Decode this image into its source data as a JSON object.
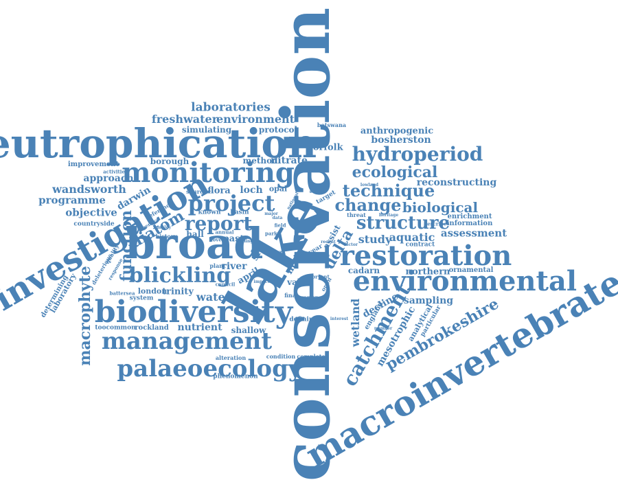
{
  "words": [
    "conservation",
    "lake",
    "macroinvertebrates",
    "eutrophication",
    "investigation",
    "broad",
    "biodiversity",
    "environmental",
    "monitoring",
    "restoration",
    "management",
    "palaeoecology",
    "project",
    "report",
    "blickling",
    "hydroperiod",
    "structure",
    "technique",
    "change",
    "ecological",
    "catchment",
    "pembrokeshire",
    "macrophyte",
    "diatom",
    "function",
    "biological",
    "laboratories",
    "freshwater",
    "environment",
    "simulating",
    "protocol",
    "botswana",
    "anthropogenic",
    "bosherston",
    "norfolk",
    "borough",
    "method",
    "nitrate",
    "improvement",
    "activities",
    "approach",
    "wandsworth",
    "darwin",
    "programme",
    "objective",
    "countryside",
    "flora",
    "loch",
    "opal",
    "source",
    "reconstructing",
    "lowland",
    "season",
    "target",
    "assessment",
    "study",
    "aquatic",
    "information",
    "enrichment",
    "threat",
    "describe",
    "contract",
    "delta",
    "site",
    "main",
    "river",
    "april",
    "past",
    "value",
    "water",
    "london",
    "trinity",
    "system",
    "battersea",
    "hall",
    "nutrient",
    "shallow",
    "council",
    "plant",
    "rockland",
    "toocommon",
    "laboratory",
    "determining",
    "deleterious",
    "quality",
    "response",
    "reference",
    "employ",
    "history",
    "general",
    "known",
    "basin",
    "annual",
    "novel",
    "major",
    "field",
    "data",
    "final",
    "region",
    "bryant",
    "open",
    "interest",
    "cadarn",
    "northern",
    "ornamental",
    "decline",
    "sampling",
    "england",
    "wetland",
    "mesotrophic",
    "analytical",
    "particular",
    "number",
    "defining",
    "alteration",
    "condition",
    "complete",
    "phenomenon",
    "heritage",
    "factor",
    "recent",
    "impact",
    "loading",
    "park",
    "llyn",
    "assist",
    "year",
    "single",
    "national"
  ]
}
